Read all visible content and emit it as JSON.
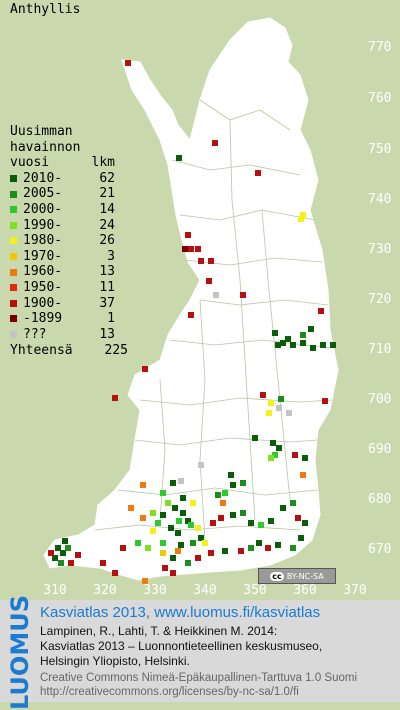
{
  "map": {
    "title": "Anthyllis",
    "y_ticks": [
      "770",
      "760",
      "750",
      "740",
      "730",
      "720",
      "710",
      "700",
      "690",
      "680",
      "670"
    ],
    "x_ticks": [
      "310",
      "320",
      "330",
      "340",
      "350",
      "360",
      "370"
    ],
    "colors": {
      "background": "#c9d9ad",
      "land": "#ffffff",
      "borders": "#b7c6a0"
    },
    "legend": {
      "header": [
        "Uusimman",
        "havainnon"
      ],
      "col_period": "vuosi",
      "col_count": "lkm",
      "rows": [
        {
          "label": "2010-",
          "count": "62",
          "color": "#0a5e0a"
        },
        {
          "label": "2005-",
          "count": "21",
          "color": "#1e8c1e"
        },
        {
          "label": "2000-",
          "count": "14",
          "color": "#2fc82f"
        },
        {
          "label": "1990-",
          "count": "24",
          "color": "#7ee01e"
        },
        {
          "label": "1980-",
          "count": "26",
          "color": "#f2f21a"
        },
        {
          "label": "1970-",
          "count": "3",
          "color": "#f0c800"
        },
        {
          "label": "1960-",
          "count": "13",
          "color": "#ee7a10"
        },
        {
          "label": "1950-",
          "count": "11",
          "color": "#e02a10"
        },
        {
          "label": "1900-",
          "count": "37",
          "color": "#b80f10"
        },
        {
          "label": "-1899",
          "count": "1",
          "color": "#7a0000"
        },
        {
          "label": "???",
          "count": "13",
          "color": "#c4c4c4"
        }
      ],
      "total_label": "Yhteensä",
      "total_count": "225"
    },
    "license_badge": {
      "cc": "cc",
      "text": "BY-NC-SA"
    }
  },
  "footer": {
    "logo": "LUOMUS",
    "headline": "Kasviatlas 2013, www.luomus.fi/kasviatlas",
    "citation_1": "Lampinen, R., Lahti, T. & Heikkinen M. 2014:",
    "citation_2": "Kasviatlas 2013 – Luonnontieteellinen keskusmuseo,",
    "citation_3": "Helsingin Yliopisto, Helsinki.",
    "license_1": "Creative Commons Nimeä-Epäkaupallinen-Tarttuva 1.0 Suomi",
    "license_2": "http://creativecommons.org/licenses/by-nc-sa/1.0/fi"
  }
}
